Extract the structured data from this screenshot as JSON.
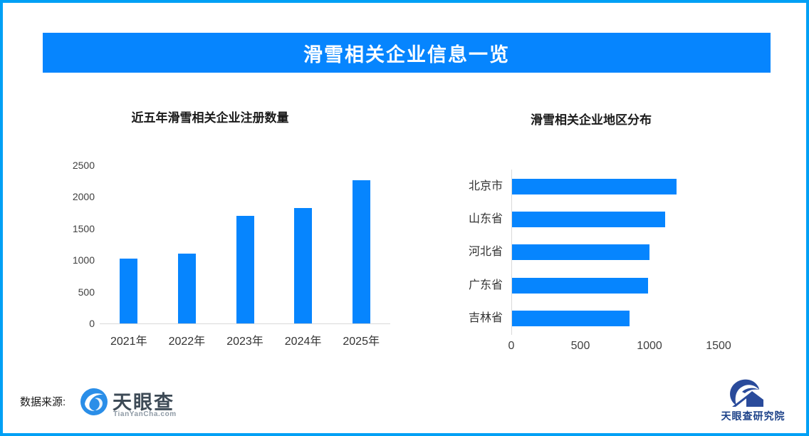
{
  "page": {
    "banner_title": "滑雪相关企业信息一览",
    "border_color": "#00a0f5",
    "accent_blue": "#0685fe"
  },
  "chart_data": [
    {
      "type": "bar",
      "orientation": "vertical",
      "title": "近五年滑雪相关企业注册数量",
      "categories": [
        "2021年",
        "2022年",
        "2023年",
        "2024年",
        "2025年"
      ],
      "values": [
        1030,
        1100,
        1700,
        1820,
        2260
      ],
      "yticks": [
        0,
        500,
        1000,
        1500,
        2000,
        2500
      ],
      "ylim": [
        0,
        2500
      ],
      "xlabel": "",
      "ylabel": "",
      "grid": false,
      "legend": false,
      "bar_color": "#0685fe"
    },
    {
      "type": "bar",
      "orientation": "horizontal",
      "title": "滑雪相关企业地区分布",
      "categories": [
        "北京市",
        "山东省",
        "河北省",
        "广东省",
        "吉林省"
      ],
      "values": [
        1190,
        1110,
        995,
        985,
        850
      ],
      "xticks": [
        0,
        500,
        1000,
        1500
      ],
      "xlim": [
        0,
        1900
      ],
      "xlabel": "",
      "ylabel": "",
      "grid": false,
      "legend": false,
      "bar_color": "#0685fe"
    }
  ],
  "footer": {
    "source_label": "数据来源:",
    "tyc_logo_name": "天眼查",
    "tyc_logo_domain": "TianYanCha.com",
    "research_logo_name": "天眼查研究院"
  }
}
